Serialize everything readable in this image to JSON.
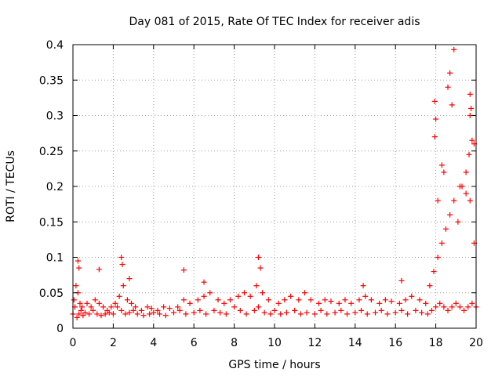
{
  "chart_data": {
    "type": "scatter",
    "title": "Day 081 of 2015, Rate Of TEC Index for receiver adis",
    "xlabel": "GPS time / hours",
    "ylabel": "ROTI / TECUs",
    "xlim": [
      0,
      20
    ],
    "ylim": [
      0,
      0.4
    ],
    "grid": true,
    "marker": "+",
    "color": "#ff0000",
    "x_ticks": [
      0,
      2,
      4,
      6,
      8,
      10,
      12,
      14,
      16,
      18,
      20
    ],
    "x_tick_labels": [
      "0",
      "2",
      "4",
      "6",
      "8",
      "10",
      "12",
      "14",
      "16",
      "18",
      "20"
    ],
    "y_ticks": [
      0,
      0.05,
      0.1,
      0.15,
      0.2,
      0.25,
      0.3,
      0.35,
      0.4
    ],
    "y_tick_labels": [
      "0",
      "0.05",
      "0.1",
      "0.15",
      "0.2",
      "0.25",
      "0.3",
      "0.35",
      "0.4"
    ],
    "series": [
      {
        "name": "ROTI",
        "x": [
          0.0,
          0.1,
          0.2,
          0.3,
          0.4,
          0.5,
          0.6,
          0.8,
          1.0,
          1.2,
          1.4,
          1.6,
          1.8,
          2.0,
          2.2,
          2.4,
          2.6,
          2.8,
          3.0,
          3.2,
          3.5,
          3.8,
          4.0,
          4.3,
          4.6,
          5.0,
          5.3,
          5.6,
          6.0,
          6.3,
          6.6,
          7.0,
          7.3,
          7.6,
          8.0,
          8.3,
          8.6,
          9.0,
          9.2,
          9.5,
          9.8,
          10.0,
          10.3,
          10.6,
          11.0,
          11.3,
          11.6,
          12.0,
          12.3,
          12.6,
          13.0,
          13.3,
          13.6,
          14.0,
          14.3,
          14.6,
          15.0,
          15.3,
          15.6,
          16.0,
          16.3,
          16.6,
          17.0,
          17.3,
          17.6,
          17.8,
          18.0,
          18.2,
          18.4,
          18.6,
          18.8,
          19.0,
          19.2,
          19.4,
          19.6,
          19.8,
          20.0,
          0.05,
          0.15,
          0.25,
          0.35,
          0.45,
          0.7,
          0.9,
          1.1,
          1.3,
          1.5,
          1.7,
          1.9,
          2.1,
          2.3,
          2.5,
          2.7,
          2.9,
          3.1,
          3.4,
          3.7,
          3.9,
          4.2,
          4.5,
          4.8,
          5.2,
          5.5,
          5.8,
          6.2,
          6.5,
          6.8,
          7.2,
          7.5,
          7.8,
          8.2,
          8.5,
          8.8,
          9.1,
          9.4,
          9.7,
          10.2,
          10.5,
          10.8,
          11.2,
          11.5,
          11.8,
          12.2,
          12.5,
          12.8,
          13.2,
          13.5,
          13.8,
          14.2,
          14.5,
          14.8,
          15.2,
          15.5,
          15.8,
          16.2,
          16.5,
          16.8,
          17.2,
          17.5,
          17.7,
          17.9,
          18.1,
          18.3,
          18.5,
          18.7,
          18.9,
          19.1,
          19.3,
          19.5,
          19.7,
          19.9,
          0.25,
          0.3,
          2.4,
          2.45,
          2.8,
          1.3,
          5.5,
          6.5,
          9.2,
          9.3,
          14.4,
          16.3,
          17.95,
          18.0,
          17.95,
          18.6,
          18.7,
          18.8,
          19.7,
          19.75,
          19.8,
          19.7,
          19.65,
          18.9,
          18.4,
          18.1,
          18.3,
          19.2,
          19.5,
          19.9
        ],
        "y": [
          0.02,
          0.03,
          0.015,
          0.02,
          0.025,
          0.018,
          0.022,
          0.02,
          0.025,
          0.02,
          0.018,
          0.02,
          0.022,
          0.02,
          0.03,
          0.025,
          0.02,
          0.022,
          0.025,
          0.02,
          0.018,
          0.02,
          0.022,
          0.02,
          0.018,
          0.022,
          0.025,
          0.02,
          0.022,
          0.025,
          0.02,
          0.025,
          0.022,
          0.02,
          0.03,
          0.025,
          0.02,
          0.025,
          0.03,
          0.022,
          0.02,
          0.025,
          0.02,
          0.022,
          0.025,
          0.02,
          0.022,
          0.02,
          0.025,
          0.02,
          0.022,
          0.025,
          0.02,
          0.022,
          0.025,
          0.02,
          0.022,
          0.025,
          0.02,
          0.022,
          0.025,
          0.02,
          0.025,
          0.022,
          0.02,
          0.025,
          0.03,
          0.035,
          0.03,
          0.025,
          0.03,
          0.035,
          0.03,
          0.025,
          0.03,
          0.035,
          0.03,
          0.04,
          0.06,
          0.05,
          0.035,
          0.03,
          0.035,
          0.03,
          0.04,
          0.035,
          0.03,
          0.025,
          0.03,
          0.035,
          0.045,
          0.06,
          0.04,
          0.035,
          0.03,
          0.025,
          0.03,
          0.028,
          0.025,
          0.03,
          0.028,
          0.03,
          0.04,
          0.035,
          0.04,
          0.045,
          0.05,
          0.04,
          0.035,
          0.04,
          0.045,
          0.05,
          0.045,
          0.06,
          0.05,
          0.04,
          0.035,
          0.04,
          0.045,
          0.04,
          0.05,
          0.04,
          0.035,
          0.04,
          0.038,
          0.035,
          0.04,
          0.035,
          0.04,
          0.045,
          0.04,
          0.035,
          0.04,
          0.038,
          0.035,
          0.04,
          0.045,
          0.04,
          0.035,
          0.06,
          0.08,
          0.1,
          0.12,
          0.14,
          0.16,
          0.18,
          0.15,
          0.2,
          0.22,
          0.18,
          0.12,
          0.095,
          0.085,
          0.1,
          0.09,
          0.07,
          0.083,
          0.082,
          0.065,
          0.1,
          0.085,
          0.06,
          0.067,
          0.32,
          0.295,
          0.27,
          0.34,
          0.36,
          0.315,
          0.33,
          0.31,
          0.265,
          0.3,
          0.245,
          0.393,
          0.22,
          0.18,
          0.23,
          0.2,
          0.19,
          0.26
        ]
      }
    ]
  }
}
